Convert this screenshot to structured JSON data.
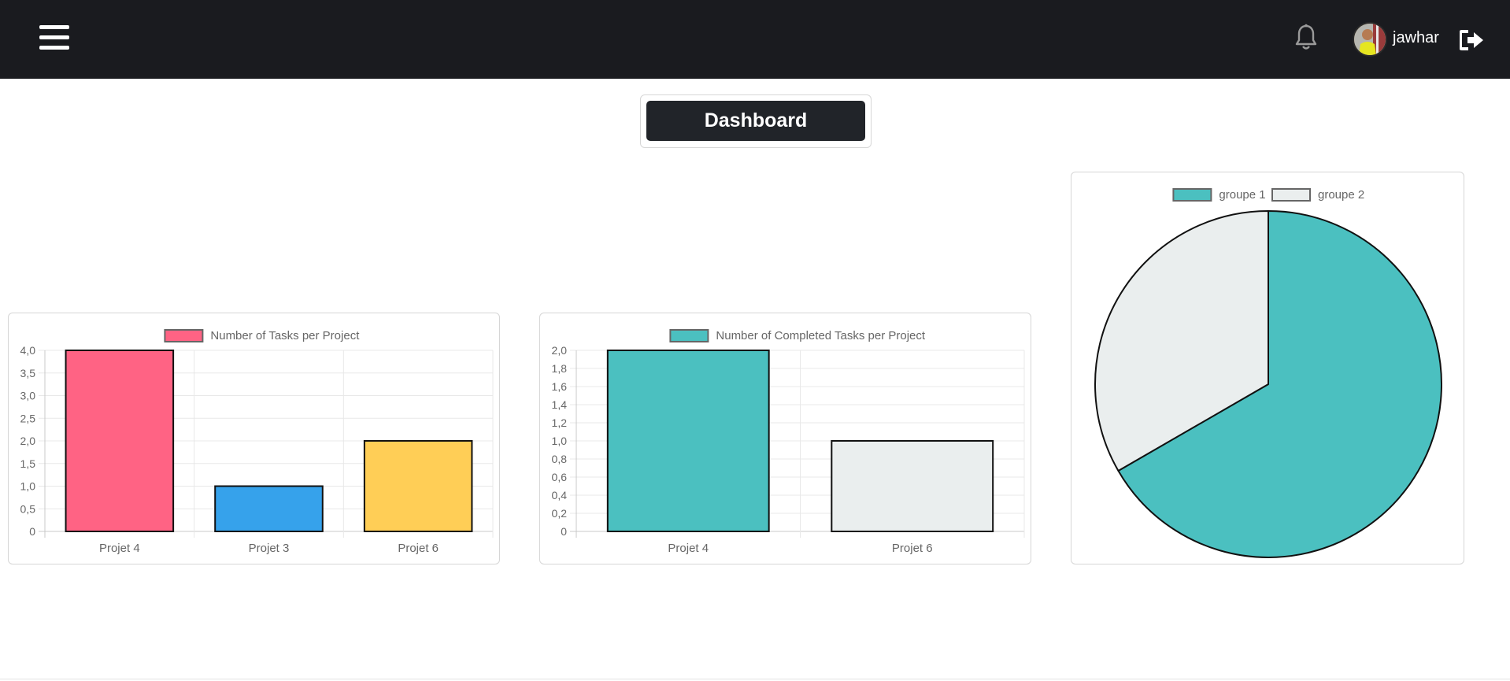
{
  "header": {
    "menu_icon": "hamburger-icon",
    "notification_icon": "bell-icon",
    "username": "jawhar",
    "logout_icon": "sign-out-icon"
  },
  "page": {
    "title": "Dashboard"
  },
  "colors": {
    "navbar": "#1a1b1f",
    "pink": "#ff6384",
    "blue": "#36a2eb",
    "yellow": "#ffce56",
    "teal": "#4bc0c0",
    "light_gray": "#eaeeee"
  },
  "chart_data": [
    {
      "type": "bar",
      "legend": [
        "Number of Tasks per Project"
      ],
      "categories": [
        "Projet 4",
        "Projet 3",
        "Projet 6"
      ],
      "values": [
        4,
        1,
        2
      ],
      "bar_colors": [
        "#ff6384",
        "#36a2eb",
        "#ffce56"
      ],
      "legend_color": "#ff6384",
      "yticks": [
        "0",
        "0,5",
        "1,0",
        "1,5",
        "2,0",
        "2,5",
        "3,0",
        "3,5",
        "4,0"
      ],
      "ylim": [
        0,
        4
      ]
    },
    {
      "type": "bar",
      "legend": [
        "Number of Completed Tasks per Project"
      ],
      "categories": [
        "Projet 4",
        "Projet 6"
      ],
      "values": [
        2,
        1
      ],
      "bar_colors": [
        "#4bc0c0",
        "#eaeeee"
      ],
      "legend_color": "#4bc0c0",
      "yticks": [
        "0",
        "0,2",
        "0,4",
        "0,6",
        "0,8",
        "1,0",
        "1,2",
        "1,4",
        "1,6",
        "1,8",
        "2,0"
      ],
      "ylim": [
        0,
        2
      ]
    },
    {
      "type": "pie",
      "labels": [
        "groupe 1",
        "groupe 2"
      ],
      "values": [
        2,
        1
      ],
      "colors": [
        "#4bc0c0",
        "#eaeeee"
      ],
      "legend_position": "top"
    }
  ]
}
